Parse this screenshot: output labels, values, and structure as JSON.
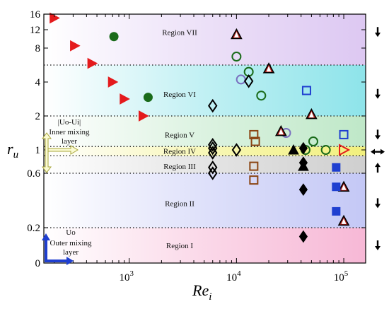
{
  "chart_data": {
    "type": "scatter",
    "title": "",
    "xlabel": "Re",
    "xlabel_sub": "i",
    "ylabel": "r",
    "ylabel_sub": "u",
    "xscale": "log",
    "yscale": "segmented",
    "xlim": [
      160,
      160000
    ],
    "ylim": [
      0,
      16
    ],
    "x_ticks": [
      {
        "value": 1000,
        "base": "10",
        "exp": "3"
      },
      {
        "value": 10000,
        "base": "10",
        "exp": "4"
      },
      {
        "value": 100000,
        "base": "10",
        "exp": "5"
      }
    ],
    "y_ticks": [
      {
        "value": 0,
        "label": "0"
      },
      {
        "value": 0.2,
        "label": "0.2"
      },
      {
        "value": 0.6,
        "label": "0.6"
      },
      {
        "value": 1,
        "label": "1"
      },
      {
        "value": 2,
        "label": "2"
      },
      {
        "value": 4,
        "label": "4"
      },
      {
        "value": 8,
        "label": "8"
      },
      {
        "value": 12,
        "label": "12"
      },
      {
        "value": 16,
        "label": "16"
      }
    ],
    "grid": false,
    "boundaries": [
      0.2,
      0.6,
      0.9,
      1.1,
      2,
      6
    ],
    "regions": [
      {
        "label": "Region I",
        "y": 0.1,
        "from": 0,
        "to": 0.2,
        "color": "#f7b8d6",
        "arrow": "down"
      },
      {
        "label": "Region II",
        "y": 0.38,
        "from": 0.2,
        "to": 0.6,
        "color": "#c4c8f6",
        "arrow": "down"
      },
      {
        "label": "Region III",
        "y": 0.72,
        "from": 0.6,
        "to": 0.9,
        "color": "#cfcfcf",
        "arrow": "up"
      },
      {
        "label": "Region IV",
        "y": 0.98,
        "from": 0.9,
        "to": 1.1,
        "color": "#f2f07c",
        "arrow": "both"
      },
      {
        "label": "Region V",
        "y": 1.45,
        "from": 1.1,
        "to": 2,
        "color": "#bfe8c8",
        "arrow": "down"
      },
      {
        "label": "Region VI",
        "y": 3.3,
        "from": 2,
        "to": 6,
        "color": "#8ee4ea",
        "arrow": "down"
      },
      {
        "label": "Region VII",
        "y": 11.5,
        "from": 6,
        "to": 16,
        "color": "#ddc8f2",
        "arrow": "down"
      }
    ],
    "annotations": {
      "inner_formula": "|Uo-Ui|",
      "inner_label_1": "Inner mixing",
      "inner_label_2": "layer",
      "outer_formula": "Uo",
      "outer_label_1": "Outer mixing",
      "outer_label_2": "layer"
    },
    "series": [
      {
        "marker": "triangle-right-filled",
        "color": "#e41a1c",
        "points": [
          [
            200,
            15
          ],
          [
            310,
            8.5
          ],
          [
            450,
            6.2
          ],
          [
            700,
            4.0
          ],
          [
            900,
            3.0
          ],
          [
            1350,
            2.0
          ]
        ]
      },
      {
        "marker": "triangle-right-open",
        "color": "#e41a1c",
        "points": [
          [
            100000,
            1.0
          ]
        ]
      },
      {
        "marker": "circle-filled",
        "color": "#1a6b1a",
        "points": [
          [
            720,
            10.5
          ],
          [
            1500,
            3.1
          ]
        ]
      },
      {
        "marker": "circle-open",
        "color": "#1a6b1a",
        "points": [
          [
            10000,
            7.0
          ],
          [
            13000,
            5.2
          ],
          [
            17000,
            3.2
          ],
          [
            44000,
            1.0
          ],
          [
            52000,
            1.25
          ],
          [
            68000,
            1.0
          ]
        ]
      },
      {
        "marker": "circle-open",
        "color": "#7a6fc0",
        "points": [
          [
            11000,
            4.3
          ],
          [
            29000,
            1.5
          ]
        ]
      },
      {
        "marker": "diamond-open",
        "color": "#000000",
        "points": [
          [
            6000,
            2.6
          ],
          [
            6000,
            1.15
          ],
          [
            6000,
            1.05
          ],
          [
            6000,
            0.95
          ],
          [
            6000,
            0.7
          ],
          [
            6000,
            0.6
          ],
          [
            13000,
            4.1
          ],
          [
            10000,
            1.0
          ]
        ]
      },
      {
        "marker": "diamond-filled",
        "color": "#000000",
        "points": [
          [
            42000,
            1.05
          ],
          [
            42000,
            0.78
          ],
          [
            42000,
            0.48
          ],
          [
            42000,
            0.15
          ]
        ]
      },
      {
        "marker": "triangle-up-filled",
        "color": "#000000",
        "points": [
          [
            34000,
            1.0
          ],
          [
            42000,
            0.72
          ]
        ]
      },
      {
        "marker": "triangle-up-open",
        "color": "#000000",
        "points": [
          [
            10000,
            11.0
          ],
          [
            20000,
            5.6
          ],
          [
            26000,
            1.55
          ],
          [
            50000,
            2.1
          ],
          [
            100000,
            0.5
          ],
          [
            100000,
            0.25
          ]
        ]
      },
      {
        "marker": "square-open",
        "color": "#8b4513",
        "points": [
          [
            14500,
            1.45
          ],
          [
            15000,
            1.25
          ],
          [
            14500,
            0.72
          ],
          [
            14500,
            0.55
          ]
        ]
      },
      {
        "marker": "square-open",
        "color": "#1f3fd0",
        "points": [
          [
            45000,
            3.5
          ],
          [
            100000,
            1.45
          ]
        ]
      },
      {
        "marker": "square-filled",
        "color": "#1f3fd0",
        "points": [
          [
            85000,
            0.7
          ],
          [
            85000,
            0.5
          ],
          [
            85000,
            0.32
          ]
        ]
      }
    ]
  }
}
